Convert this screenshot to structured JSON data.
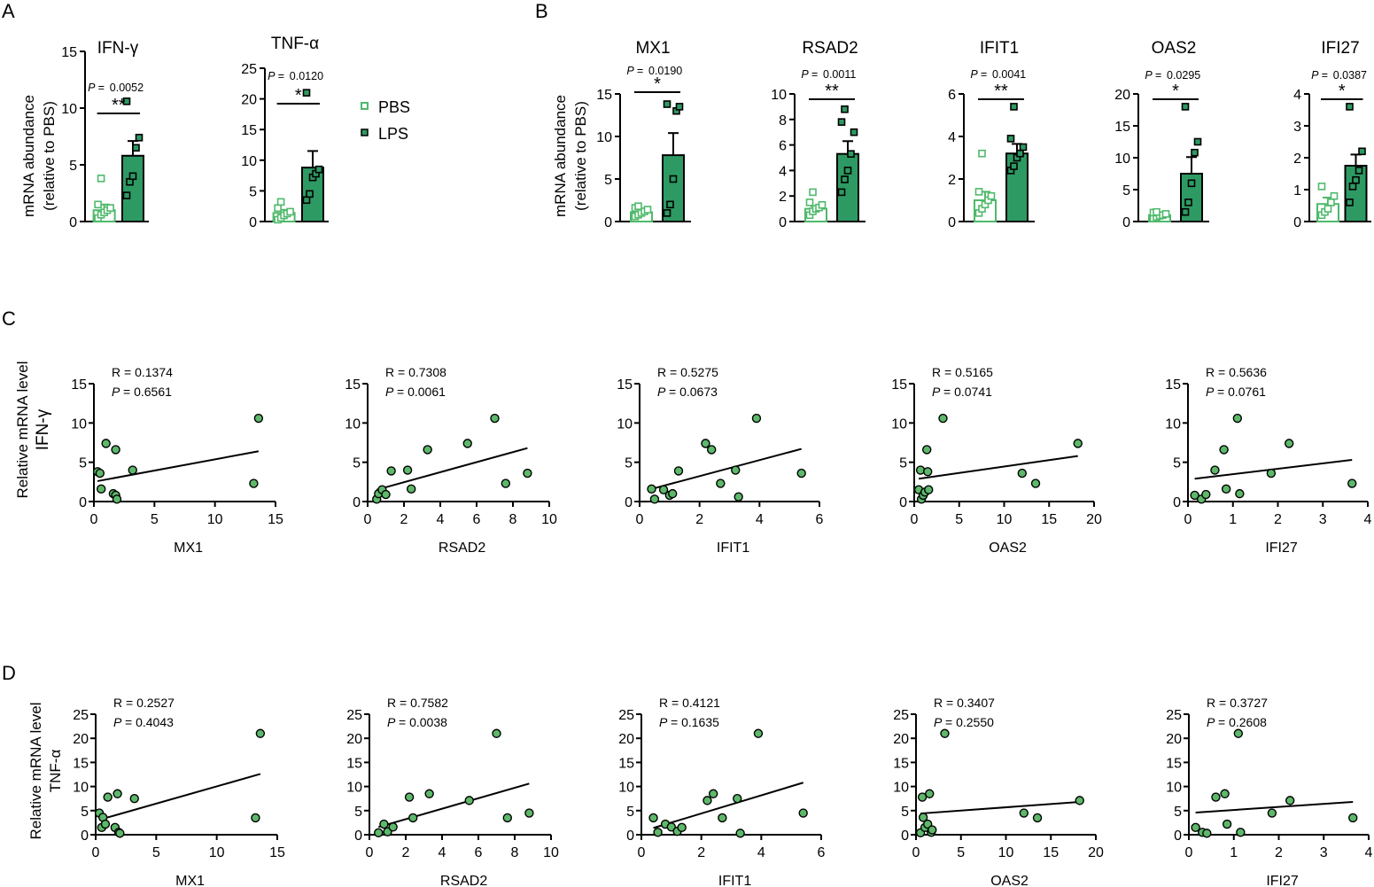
{
  "panel_letters": {
    "A": "A",
    "B": "B",
    "C": "C",
    "D": "D"
  },
  "colors": {
    "pbs": "#4fb96b",
    "lps": "#2e9a63",
    "dot": "#5db86a",
    "bar_fill": "#2e9a63"
  },
  "legend": {
    "pbs": "PBS",
    "lps": "LPS"
  },
  "bar_ylabel": [
    "mRNA abundance",
    "(relative to  PBS)"
  ],
  "scatter_ylabel_C": [
    "Relative mRNA level",
    "IFN-γ"
  ],
  "scatter_ylabel_D": [
    "Relative mRNA level",
    "TNF-α"
  ],
  "chart_data": [
    {
      "type": "bar",
      "panel": "A",
      "title": "IFN-γ",
      "categories": [
        "PBS",
        "LPS"
      ],
      "values": [
        1.0,
        5.8
      ],
      "sem": [
        0.5,
        1.3
      ],
      "ylim": [
        0,
        15
      ],
      "yticks": [
        0,
        5,
        10,
        15
      ],
      "p_label": "P =",
      "p_value": "0.0052",
      "stars": "**",
      "points": {
        "PBS": [
          0.3,
          0.6,
          0.8,
          1.0,
          1.2,
          1.5,
          3.8
        ],
        "LPS": [
          2.3,
          3.5,
          4.0,
          6.5,
          7.4,
          10.6
        ]
      }
    },
    {
      "type": "bar",
      "panel": "A",
      "title": "TNF-α",
      "categories": [
        "PBS",
        "LPS"
      ],
      "values": [
        1.4,
        8.8
      ],
      "sem": [
        0.5,
        2.7
      ],
      "ylim": [
        0,
        25
      ],
      "yticks": [
        0,
        5,
        10,
        15,
        20,
        25
      ],
      "p_label": "P =",
      "p_value": "0.0120",
      "stars": "*",
      "points": {
        "PBS": [
          0.3,
          0.6,
          1.0,
          1.3,
          1.6,
          2.2,
          3.2
        ],
        "LPS": [
          3.5,
          4.5,
          7.2,
          7.8,
          8.5,
          21.0
        ]
      }
    },
    {
      "type": "bar",
      "panel": "B",
      "title": "MX1",
      "categories": [
        "PBS",
        "LPS"
      ],
      "values": [
        1.1,
        7.8
      ],
      "sem": [
        0.2,
        2.6
      ],
      "ylim": [
        0,
        15
      ],
      "yticks": [
        0,
        5,
        10,
        15
      ],
      "p_label": "P =",
      "p_value": "0.0190",
      "stars": "*",
      "points": {
        "PBS": [
          0.6,
          0.8,
          1.0,
          1.2,
          1.4,
          1.6,
          1.8
        ],
        "LPS": [
          1.0,
          2.0,
          5.0,
          13.0,
          13.5,
          13.8
        ]
      }
    },
    {
      "type": "bar",
      "panel": "B",
      "title": "RSAD2",
      "categories": [
        "PBS",
        "LPS"
      ],
      "values": [
        1.0,
        5.3
      ],
      "sem": [
        0.2,
        1.0
      ],
      "ylim": [
        0,
        10
      ],
      "yticks": [
        0,
        2,
        4,
        6,
        8,
        10
      ],
      "p_label": "P =",
      "p_value": "0.0011",
      "stars": "**",
      "points": {
        "PBS": [
          0.5,
          0.8,
          1.0,
          1.1,
          1.3,
          1.5,
          2.3
        ],
        "LPS": [
          2.3,
          3.3,
          4.0,
          5.3,
          7.0,
          7.8,
          8.8
        ]
      }
    },
    {
      "type": "bar",
      "panel": "B",
      "title": "IFIT1",
      "categories": [
        "PBS",
        "LPS"
      ],
      "values": [
        1.0,
        3.2
      ],
      "sem": [
        0.4,
        0.45
      ],
      "ylim": [
        0,
        6
      ],
      "yticks": [
        0,
        2,
        4,
        6
      ],
      "p_label": "P =",
      "p_value": "0.0041",
      "stars": "**",
      "points": {
        "PBS": [
          0.4,
          0.6,
          0.8,
          1.0,
          1.2,
          1.4,
          3.2
        ],
        "LPS": [
          2.4,
          2.6,
          3.0,
          3.2,
          3.5,
          3.9,
          5.4
        ]
      }
    },
    {
      "type": "bar",
      "panel": "B",
      "title": "OAS2",
      "categories": [
        "PBS",
        "LPS"
      ],
      "values": [
        1.0,
        7.5
      ],
      "sem": [
        0.2,
        2.6
      ],
      "ylim": [
        0,
        20
      ],
      "yticks": [
        0,
        5,
        10,
        15,
        20
      ],
      "p_label": "P =",
      "p_value": "0.0295",
      "stars": "*",
      "points": {
        "PBS": [
          0.5,
          0.7,
          0.9,
          1.0,
          1.2,
          1.4,
          1.5
        ],
        "LPS": [
          1.5,
          3.0,
          6.0,
          10.8,
          12.5,
          18.0
        ]
      }
    },
    {
      "type": "bar",
      "panel": "B",
      "title": "IFI27",
      "categories": [
        "PBS",
        "LPS"
      ],
      "values": [
        0.55,
        1.75
      ],
      "sem": [
        0.2,
        0.35
      ],
      "ylim": [
        0,
        4
      ],
      "yticks": [
        0,
        1,
        2,
        3,
        4
      ],
      "p_label": "P =",
      "p_value": "0.0387",
      "stars": "*",
      "points": {
        "PBS": [
          0.2,
          0.3,
          0.4,
          0.6,
          0.8,
          1.1
        ],
        "LPS": [
          0.6,
          1.1,
          1.3,
          1.6,
          2.2,
          3.6
        ]
      }
    },
    {
      "type": "scatter",
      "panel": "C",
      "xlabel": "MX1",
      "xlim": [
        0,
        15
      ],
      "xticks": [
        0,
        5,
        10,
        15
      ],
      "ylim": [
        0,
        15
      ],
      "yticks": [
        0,
        5,
        10,
        15
      ],
      "r_text": "R = 0.1374",
      "p_label": "P",
      "p_text": "= 0.6561",
      "points": [
        [
          0.3,
          3.8
        ],
        [
          0.5,
          3.6
        ],
        [
          0.6,
          1.6
        ],
        [
          1.0,
          7.4
        ],
        [
          1.6,
          1.0
        ],
        [
          1.8,
          6.6
        ],
        [
          1.8,
          0.8
        ],
        [
          1.9,
          0.3
        ],
        [
          3.2,
          4.0
        ],
        [
          13.2,
          2.3
        ],
        [
          13.6,
          10.6
        ]
      ],
      "fit": [
        [
          0.3,
          2.6
        ],
        [
          13.6,
          6.4
        ]
      ]
    },
    {
      "type": "scatter",
      "panel": "C",
      "xlabel": "RSAD2",
      "xlim": [
        0,
        10
      ],
      "xticks": [
        0,
        2,
        4,
        6,
        8,
        10
      ],
      "ylim": [
        0,
        15
      ],
      "yticks": [
        0,
        5,
        10,
        15
      ],
      "r_text": "R = 0.7308",
      "p_label": "P",
      "p_text": "= 0.0061",
      "points": [
        [
          0.5,
          0.3
        ],
        [
          0.6,
          1.0
        ],
        [
          0.8,
          1.5
        ],
        [
          1.0,
          0.9
        ],
        [
          1.3,
          3.9
        ],
        [
          2.2,
          4.0
        ],
        [
          2.4,
          1.6
        ],
        [
          3.3,
          6.6
        ],
        [
          5.5,
          7.4
        ],
        [
          7.0,
          10.6
        ],
        [
          7.6,
          2.3
        ],
        [
          8.8,
          3.6
        ]
      ],
      "fit": [
        [
          0.5,
          1.5
        ],
        [
          8.8,
          6.8
        ]
      ]
    },
    {
      "type": "scatter",
      "panel": "C",
      "xlabel": "IFIT1",
      "xlim": [
        0,
        6
      ],
      "xticks": [
        0,
        2,
        4,
        6
      ],
      "ylim": [
        0,
        15
      ],
      "yticks": [
        0,
        5,
        10,
        15
      ],
      "r_text": "R = 0.5275",
      "p_label": "P",
      "p_text": "= 0.0673",
      "points": [
        [
          0.4,
          1.6
        ],
        [
          0.5,
          0.3
        ],
        [
          0.8,
          1.5
        ],
        [
          1.0,
          0.8
        ],
        [
          1.1,
          1.0
        ],
        [
          1.3,
          3.9
        ],
        [
          2.2,
          7.4
        ],
        [
          2.4,
          6.6
        ],
        [
          2.7,
          2.3
        ],
        [
          3.2,
          4.0
        ],
        [
          3.3,
          0.6
        ],
        [
          3.9,
          10.6
        ],
        [
          5.4,
          3.6
        ]
      ],
      "fit": [
        [
          0.4,
          1.6
        ],
        [
          5.4,
          6.7
        ]
      ]
    },
    {
      "type": "scatter",
      "panel": "C",
      "xlabel": "OAS2",
      "xlim": [
        0,
        20
      ],
      "xticks": [
        0,
        5,
        10,
        15,
        20
      ],
      "ylim": [
        0,
        15
      ],
      "yticks": [
        0,
        5,
        10,
        15
      ],
      "r_text": "R = 0.5165",
      "p_label": "P",
      "p_text": "= 0.0741",
      "points": [
        [
          0.5,
          1.5
        ],
        [
          0.7,
          4.0
        ],
        [
          0.8,
          0.3
        ],
        [
          1.0,
          0.8
        ],
        [
          1.2,
          1.2
        ],
        [
          1.4,
          6.6
        ],
        [
          1.5,
          3.8
        ],
        [
          1.6,
          1.5
        ],
        [
          3.2,
          10.6
        ],
        [
          12.0,
          3.6
        ],
        [
          13.5,
          2.3
        ],
        [
          18.2,
          7.4
        ]
      ],
      "fit": [
        [
          0.5,
          2.9
        ],
        [
          18.2,
          5.8
        ]
      ]
    },
    {
      "type": "scatter",
      "panel": "C",
      "xlabel": "IFI27",
      "xlim": [
        0,
        4
      ],
      "xticks": [
        0,
        1,
        2,
        3,
        4
      ],
      "ylim": [
        0,
        15
      ],
      "yticks": [
        0,
        5,
        10,
        15
      ],
      "r_text": "R = 0.5636",
      "p_label": "P",
      "p_text": "= 0.0761",
      "points": [
        [
          0.15,
          0.8
        ],
        [
          0.3,
          0.3
        ],
        [
          0.4,
          0.9
        ],
        [
          0.6,
          4.0
        ],
        [
          0.8,
          6.6
        ],
        [
          0.85,
          1.6
        ],
        [
          1.1,
          10.6
        ],
        [
          1.15,
          1.0
        ],
        [
          1.85,
          3.6
        ],
        [
          2.25,
          7.4
        ],
        [
          3.65,
          2.3
        ]
      ],
      "fit": [
        [
          0.15,
          2.9
        ],
        [
          3.65,
          5.3
        ]
      ]
    },
    {
      "type": "scatter",
      "panel": "D",
      "xlabel": "MX1",
      "xlim": [
        0,
        15
      ],
      "xticks": [
        0,
        5,
        10,
        15
      ],
      "ylim": [
        0,
        25
      ],
      "yticks": [
        0,
        5,
        10,
        15,
        20,
        25
      ],
      "r_text": "R = 0.2527",
      "p_label": "P",
      "p_text": "= 0.4043",
      "points": [
        [
          0.3,
          4.5
        ],
        [
          0.5,
          1.5
        ],
        [
          0.6,
          3.6
        ],
        [
          0.8,
          2.2
        ],
        [
          1.0,
          7.8
        ],
        [
          1.6,
          1.5
        ],
        [
          1.8,
          8.5
        ],
        [
          1.9,
          0.5
        ],
        [
          2.0,
          0.3
        ],
        [
          3.2,
          7.5
        ],
        [
          13.2,
          3.5
        ],
        [
          13.6,
          21.0
        ]
      ],
      "fit": [
        [
          0.3,
          3.1
        ],
        [
          13.6,
          12.6
        ]
      ]
    },
    {
      "type": "scatter",
      "panel": "D",
      "xlabel": "RSAD2",
      "xlim": [
        0,
        10
      ],
      "xticks": [
        0,
        2,
        4,
        6,
        8,
        10
      ],
      "ylim": [
        0,
        25
      ],
      "yticks": [
        0,
        5,
        10,
        15,
        20,
        25
      ],
      "r_text": "R = 0.7582",
      "p_label": "P",
      "p_text": "= 0.0038",
      "points": [
        [
          0.5,
          0.4
        ],
        [
          0.8,
          2.2
        ],
        [
          1.0,
          0.6
        ],
        [
          1.3,
          1.6
        ],
        [
          2.2,
          7.8
        ],
        [
          2.4,
          3.5
        ],
        [
          3.3,
          8.5
        ],
        [
          5.5,
          7.1
        ],
        [
          7.0,
          21.0
        ],
        [
          7.6,
          3.5
        ],
        [
          8.8,
          4.5
        ]
      ],
      "fit": [
        [
          0.5,
          1.6
        ],
        [
          8.8,
          10.6
        ]
      ]
    },
    {
      "type": "scatter",
      "panel": "D",
      "xlabel": "IFIT1",
      "xlim": [
        0,
        6
      ],
      "xticks": [
        0,
        2,
        4,
        6
      ],
      "ylim": [
        0,
        25
      ],
      "yticks": [
        0,
        5,
        10,
        15,
        20,
        25
      ],
      "r_text": "R = 0.4121",
      "p_label": "P",
      "p_text": "= 0.1635",
      "points": [
        [
          0.4,
          3.5
        ],
        [
          0.55,
          0.5
        ],
        [
          0.8,
          2.2
        ],
        [
          1.0,
          1.6
        ],
        [
          1.2,
          0.7
        ],
        [
          1.35,
          1.5
        ],
        [
          2.2,
          7.1
        ],
        [
          2.4,
          8.5
        ],
        [
          2.7,
          3.5
        ],
        [
          3.2,
          7.5
        ],
        [
          3.3,
          0.3
        ],
        [
          3.9,
          21.0
        ],
        [
          5.4,
          4.5
        ]
      ],
      "fit": [
        [
          0.4,
          1.4
        ],
        [
          5.4,
          10.8
        ]
      ]
    },
    {
      "type": "scatter",
      "panel": "D",
      "xlabel": "OAS2",
      "xlim": [
        0,
        20
      ],
      "xticks": [
        0,
        5,
        10,
        15,
        20
      ],
      "ylim": [
        0,
        25
      ],
      "yticks": [
        0,
        5,
        10,
        15,
        20,
        25
      ],
      "r_text": "R = 0.3407",
      "p_label": "P",
      "p_text": "= 0.2550",
      "points": [
        [
          0.5,
          0.4
        ],
        [
          0.7,
          7.8
        ],
        [
          0.8,
          3.6
        ],
        [
          1.0,
          1.5
        ],
        [
          1.3,
          2.2
        ],
        [
          1.5,
          8.5
        ],
        [
          1.7,
          0.5
        ],
        [
          1.8,
          1.0
        ],
        [
          3.2,
          21.0
        ],
        [
          12.0,
          4.5
        ],
        [
          13.5,
          3.5
        ],
        [
          18.2,
          7.1
        ]
      ],
      "fit": [
        [
          0.5,
          4.4
        ],
        [
          18.2,
          6.8
        ]
      ]
    },
    {
      "type": "scatter",
      "panel": "D",
      "xlabel": "IFI27",
      "xlim": [
        0,
        4
      ],
      "xticks": [
        0,
        1,
        2,
        3,
        4
      ],
      "ylim": [
        0,
        25
      ],
      "yticks": [
        0,
        5,
        10,
        15,
        20,
        25
      ],
      "r_text": "R = 0.3727",
      "p_label": "P",
      "p_text": "= 0.2608",
      "points": [
        [
          0.15,
          1.5
        ],
        [
          0.3,
          0.5
        ],
        [
          0.4,
          0.3
        ],
        [
          0.6,
          7.8
        ],
        [
          0.8,
          8.5
        ],
        [
          0.85,
          2.2
        ],
        [
          1.1,
          21.0
        ],
        [
          1.15,
          0.5
        ],
        [
          1.85,
          4.5
        ],
        [
          2.25,
          7.1
        ],
        [
          3.65,
          3.5
        ]
      ],
      "fit": [
        [
          0.15,
          4.6
        ],
        [
          3.65,
          6.8
        ]
      ]
    }
  ]
}
